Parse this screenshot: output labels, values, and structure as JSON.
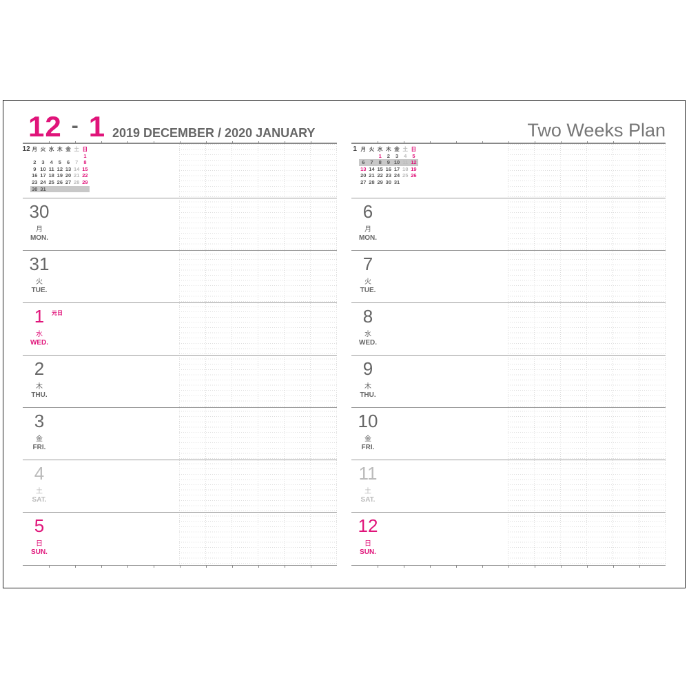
{
  "header": {
    "start_month": "12",
    "dash": "-",
    "end_month": "1",
    "year_month": "2019  DECEMBER / 2020  JANUARY",
    "title": "Two Weeks Plan"
  },
  "colors": {
    "accent": "#e0147a",
    "text": "#666666",
    "saturday": "#bbbbbb",
    "highlight": "#c8c8c8"
  },
  "weekday_header": [
    "月",
    "火",
    "水",
    "木",
    "金",
    "土",
    "日"
  ],
  "left": {
    "mini_calendar": {
      "month": "12",
      "weeks": [
        [
          "",
          "",
          "",
          "",
          "",
          "",
          "1"
        ],
        [
          "2",
          "3",
          "4",
          "5",
          "6",
          "7",
          "8"
        ],
        [
          "9",
          "10",
          "11",
          "12",
          "13",
          "14",
          "15"
        ],
        [
          "16",
          "17",
          "18",
          "19",
          "20",
          "21",
          "22"
        ],
        [
          "23",
          "24",
          "25",
          "26",
          "27",
          "28",
          "29"
        ],
        [
          "30",
          "31",
          "",
          "",
          "",
          "",
          ""
        ]
      ],
      "highlight_week": 5
    },
    "days": [
      {
        "num": "30",
        "kanji": "月",
        "wd": "MON.",
        "type": "",
        "holiday": ""
      },
      {
        "num": "31",
        "kanji": "火",
        "wd": "TUE.",
        "type": "",
        "holiday": ""
      },
      {
        "num": "1",
        "kanji": "水",
        "wd": "WED.",
        "type": "sun",
        "holiday": "元日"
      },
      {
        "num": "2",
        "kanji": "木",
        "wd": "THU.",
        "type": "",
        "holiday": ""
      },
      {
        "num": "3",
        "kanji": "金",
        "wd": "FRI.",
        "type": "",
        "holiday": ""
      },
      {
        "num": "4",
        "kanji": "土",
        "wd": "SAT.",
        "type": "sat",
        "holiday": ""
      },
      {
        "num": "5",
        "kanji": "日",
        "wd": "SUN.",
        "type": "sun",
        "holiday": ""
      }
    ]
  },
  "right": {
    "mini_calendar": {
      "month": "1",
      "weeks": [
        [
          "",
          "",
          "1",
          "2",
          "3",
          "4",
          "5"
        ],
        [
          "6",
          "7",
          "8",
          "9",
          "10",
          "11",
          "12"
        ],
        [
          "13",
          "14",
          "15",
          "16",
          "17",
          "18",
          "19"
        ],
        [
          "20",
          "21",
          "22",
          "23",
          "24",
          "25",
          "26"
        ],
        [
          "27",
          "28",
          "29",
          "30",
          "31",
          "",
          ""
        ]
      ],
      "highlight_week": 1,
      "extra_sundays": [
        "1",
        "13"
      ]
    },
    "days": [
      {
        "num": "6",
        "kanji": "月",
        "wd": "MON.",
        "type": "",
        "holiday": ""
      },
      {
        "num": "7",
        "kanji": "火",
        "wd": "TUE.",
        "type": "",
        "holiday": ""
      },
      {
        "num": "8",
        "kanji": "水",
        "wd": "WED.",
        "type": "",
        "holiday": ""
      },
      {
        "num": "9",
        "kanji": "木",
        "wd": "THU.",
        "type": "",
        "holiday": ""
      },
      {
        "num": "10",
        "kanji": "金",
        "wd": "FRI.",
        "type": "",
        "holiday": ""
      },
      {
        "num": "11",
        "kanji": "土",
        "wd": "SAT.",
        "type": "sat",
        "holiday": ""
      },
      {
        "num": "12",
        "kanji": "日",
        "wd": "SUN.",
        "type": "sun",
        "holiday": ""
      }
    ]
  }
}
